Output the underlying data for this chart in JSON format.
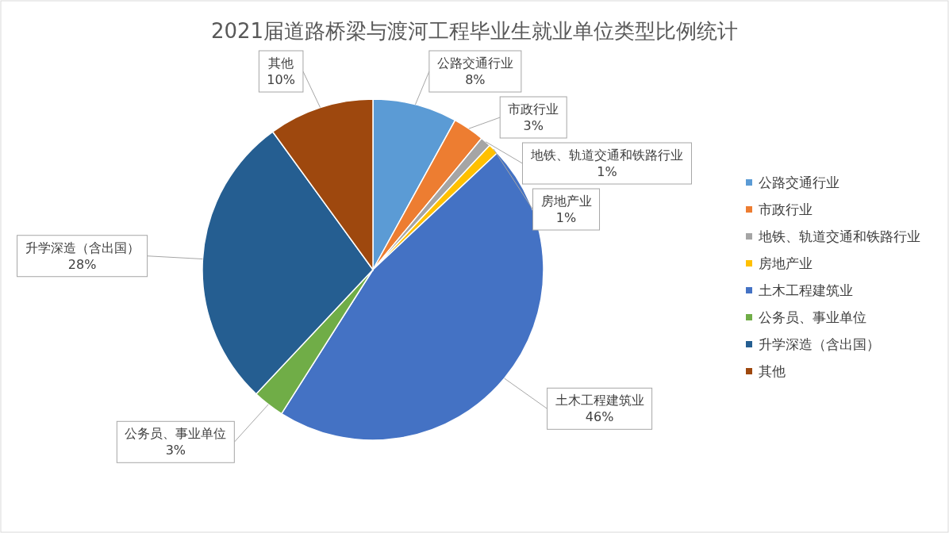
{
  "chart_data": {
    "type": "pie",
    "title": "2021届道路桥梁与渡河工程毕业生就业单位类型比例统计",
    "categories": [
      "公路交通行业",
      "市政行业",
      "地铁、轨道交通和铁路行业",
      "房地产业",
      "土木工程建筑业",
      "公务员、事业单位",
      "升学深造（含出国）",
      "其他"
    ],
    "values": [
      8,
      3,
      1,
      1,
      46,
      3,
      28,
      10
    ],
    "colors": [
      "#5b9bd5",
      "#ed7d31",
      "#a5a5a5",
      "#ffc000",
      "#4472c4",
      "#70ad47",
      "#255e91",
      "#9e480e"
    ],
    "data_labels": true,
    "value_labels": [
      "8%",
      "3%",
      "1%",
      "1%",
      "46%",
      "3%",
      "28%",
      "10%"
    ],
    "legend": "right"
  }
}
